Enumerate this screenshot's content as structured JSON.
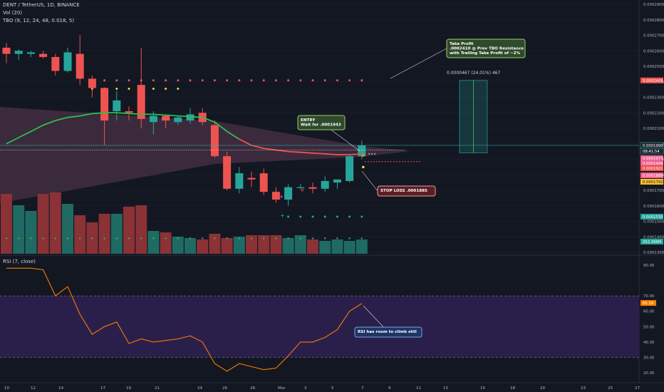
{
  "header": {
    "title": "DENT / TetherUS, 1D, BINANCE",
    "vol_label": "Vol (20)",
    "tbo_label": "TBO (9, 12, 24, 48, 0.018, 5)",
    "rsi_label": "RSI (7, close)"
  },
  "colors": {
    "background": "#131722",
    "up": "#26a69a",
    "down": "#ef5350",
    "vol_up": "#1f6b64",
    "vol_down": "#8a3236",
    "ema": "#2ebd4e",
    "rsi_line": "#f57c00",
    "rsi_band": "#2a1f4a",
    "cloud": "#5b3a52"
  },
  "price_axis": {
    "ticks": [
      "0.0002900",
      "0.0002800",
      "0.0002700",
      "0.0002600",
      "0.0002500",
      "0.0002400",
      "0.0002300",
      "0.0002200",
      "0.0002100",
      "0.0002000",
      "0.0001900",
      "0.0001800",
      "0.0001700",
      "0.0001600",
      "0.0001500",
      "0.0001400",
      "0.0001300"
    ],
    "badges": [
      {
        "text": "0.0002409",
        "color": "#ef5350"
      },
      {
        "text": "0.0001990",
        "color": "#1e222d",
        "border": "#26a69a"
      },
      {
        "text": "08:41:54",
        "color": "#1e222d",
        "border": "#26a69a"
      },
      {
        "text": "0.0001973",
        "color": "#f06292"
      },
      {
        "text": "0.0001944",
        "color": "#f06292"
      },
      {
        "text": "0.0001921",
        "color": "#ef5350"
      },
      {
        "text": "0.0001886",
        "color": "#f06292"
      },
      {
        "text": "0.0001792",
        "color": "#fbc02d"
      },
      {
        "text": "0.0001530",
        "color": "#26a69a"
      },
      {
        "text": "352.388M",
        "color": "#26a69a"
      }
    ]
  },
  "rsi_axis": {
    "ticks": [
      "90.00",
      "70.00",
      "60.00",
      "50.00",
      "40.00",
      "30.00",
      "20.00"
    ],
    "badge": "65.39"
  },
  "time_axis": {
    "labels": [
      "10",
      "12",
      "14",
      "17",
      "19",
      "21",
      "24",
      "26",
      "28",
      "Mar",
      "3",
      "5",
      "7",
      "9",
      "11",
      "13",
      "15",
      "18",
      "20",
      "23",
      "25",
      "27"
    ]
  },
  "annotations": {
    "take_profit": [
      "Take Profit",
      ".0002410 @ Prev TBO Resistance",
      "with Trailing Take Profit of ~2%"
    ],
    "measure": "0.0000467 (24.01%) 467",
    "entry": [
      "ENTRY",
      "Wait for .0001943"
    ],
    "stop_loss": "STOP LOSS .0001885",
    "rsi_note": "RSI has room to climb still"
  },
  "chart_data": {
    "type": "candlestick",
    "series": [
      {
        "name": "DENT / TetherUS",
        "ohlc": [
          [
            0.000262,
            0.000265,
            0.000252,
            0.000258
          ],
          [
            0.000258,
            0.000261,
            0.000254,
            0.00026
          ],
          [
            0.000258,
            0.00026,
            0.000256,
            0.000259
          ],
          [
            0.000258,
            0.00026,
            0.000255,
            0.000256
          ],
          [
            0.000256,
            0.000258,
            0.000244,
            0.000247
          ],
          [
            0.000247,
            0.000262,
            0.000246,
            0.000259
          ],
          [
            0.000258,
            0.00027,
            0.000238,
            0.000242
          ],
          [
            0.000242,
            0.000244,
            0.00023,
            0.000236
          ],
          [
            0.000236,
            0.000236,
            0.000199,
            0.000215
          ],
          [
            0.000221,
            0.000234,
            0.000215,
            0.000228
          ],
          [
            0.000221,
            0.000224,
            0.000215,
            0.00022
          ],
          [
            0.000238,
            0.000262,
            0.00021,
            0.000216
          ],
          [
            0.000214,
            0.000221,
            0.000206,
            0.000218
          ],
          [
            0.000218,
            0.000219,
            0.00021,
            0.000215
          ],
          [
            0.000214,
            0.000218,
            0.000212,
            0.000217
          ],
          [
            0.000215,
            0.000223,
            0.000213,
            0.000219
          ],
          [
            0.00022,
            0.000223,
            0.000212,
            0.000214
          ],
          [
            0.000212,
            0.000215,
            0.000191,
            0.000192
          ],
          [
            0.000192,
            0.000195,
            0.00017,
            0.000171
          ],
          [
            0.000171,
            0.000185,
            0.000168,
            0.000181
          ],
          [
            0.000178,
            0.000182,
            0.000172,
            0.000177
          ],
          [
            0.000181,
            0.000184,
            0.000167,
            0.000169
          ],
          [
            0.000169,
            0.000172,
            0.000162,
            0.000164
          ],
          [
            0.000164,
            0.000174,
            0.00016,
            0.000172
          ],
          [
            0.000172,
            0.000174,
            0.000171,
            0.000172
          ],
          [
            0.000172,
            0.000175,
            0.000168,
            0.000171
          ],
          [
            0.000171,
            0.000179,
            0.000169,
            0.000176
          ],
          [
            0.000175,
            0.000177,
            0.000171,
            0.000177
          ],
          [
            0.000176,
            0.000193,
            0.000175,
            0.000192
          ],
          [
            0.000192,
            0.000202,
            0.00019,
            0.000199
          ]
        ]
      },
      {
        "name": "Vol",
        "values": [
          0.42,
          0.34,
          0.3,
          0.42,
          0.43,
          0.35,
          0.27,
          0.22,
          0.28,
          0.28,
          0.33,
          0.34,
          0.16,
          0.15,
          0.12,
          0.11,
          0.1,
          0.14,
          0.11,
          0.12,
          0.13,
          0.13,
          0.13,
          0.11,
          0.13,
          0.1,
          0.09,
          0.1,
          0.09,
          0.1
        ]
      },
      {
        "name": "EMA",
        "values": [
          0.0002,
          0.000204,
          0.000208,
          0.000212,
          0.000215,
          0.000217,
          0.000218,
          0.0002195,
          0.00022,
          0.00022,
          0.0002195,
          0.000219,
          0.000219,
          0.0002185,
          0.000218,
          0.0002175,
          0.000217,
          0.000214,
          0.000208,
          0.000203,
          0.000199,
          0.000197,
          0.000196,
          0.000195,
          0.0001945,
          0.000194,
          0.0001935,
          0.000193,
          0.000193,
          0.0001935
        ]
      },
      {
        "name": "RSI",
        "values": [
          88,
          88,
          88,
          87,
          70,
          76,
          58,
          45,
          50,
          53,
          39,
          42,
          40,
          41,
          42,
          44,
          40,
          26,
          21,
          26,
          24,
          22,
          23,
          31,
          40,
          40,
          43,
          48,
          60,
          65
        ]
      }
    ],
    "levels": {
      "resistance": 0.0002409,
      "current": 0.000199,
      "stop_loss": 0.0001885,
      "support": 0.000153
    },
    "rsi_levels": [
      70,
      30
    ],
    "ylim": [
      0.00013,
      0.000295
    ],
    "rsi_ylim": [
      15,
      95
    ]
  }
}
